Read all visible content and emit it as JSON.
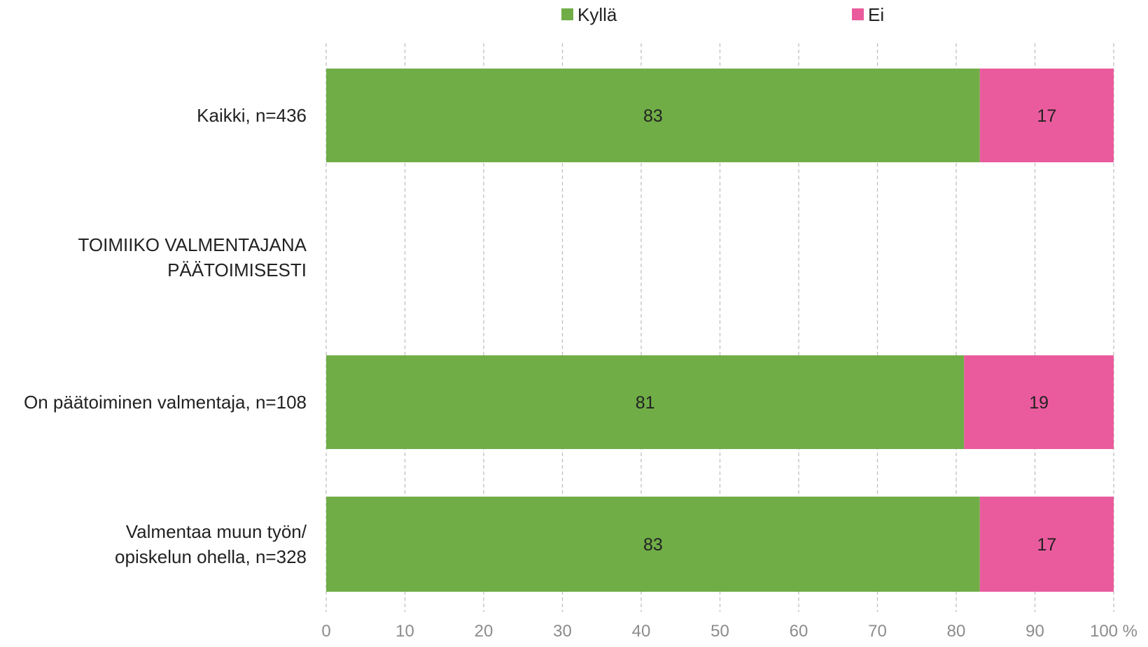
{
  "chart_data": {
    "type": "bar",
    "orientation": "horizontal",
    "stacked": true,
    "legend_position": "top",
    "grid": true,
    "categories": [
      [
        "Kaikki, n=436"
      ],
      [
        "TOIMIIKO VALMENTAJANA",
        "PÄÄTOIMISESTI"
      ],
      [
        "On päätoiminen valmentaja, n=108"
      ],
      [
        "Valmentaa muun työn/",
        "opiskelun ohella, n=328"
      ]
    ],
    "series": [
      {
        "name": "Kyllä",
        "color": "#70ad47",
        "values": [
          83,
          null,
          81,
          83
        ]
      },
      {
        "name": "Ei",
        "color": "#ea5b9d",
        "values": [
          17,
          null,
          19,
          17
        ]
      }
    ],
    "xlim": [
      0,
      100
    ],
    "xticks": [
      "0",
      "10",
      "20",
      "30",
      "40",
      "50",
      "60",
      "70",
      "80",
      "90",
      "100 %"
    ]
  }
}
